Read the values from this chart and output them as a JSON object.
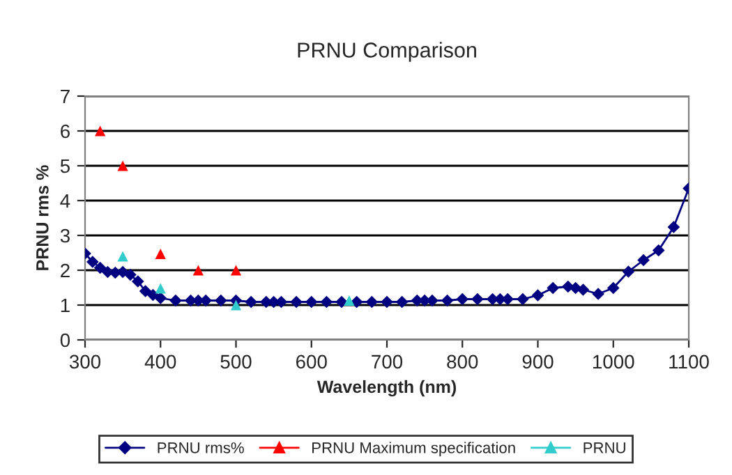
{
  "chart_data": {
    "type": "line",
    "title": "PRNU Comparison",
    "xlabel": "Wavelength (nm)",
    "ylabel": "PRNU rms %",
    "xlim": [
      300,
      1100
    ],
    "xticks": [
      300,
      400,
      500,
      600,
      700,
      800,
      900,
      1000,
      1100
    ],
    "ylim": [
      0,
      7
    ],
    "yticks": [
      0,
      1,
      2,
      3,
      4,
      5,
      6,
      7
    ],
    "grid": "y",
    "legend": "bottom",
    "series": [
      {
        "name": "PRNU rms%",
        "color": "#000080",
        "marker": "diamond",
        "x": [
          300,
          310,
          320,
          330,
          340,
          350,
          360,
          370,
          380,
          390,
          400,
          420,
          440,
          450,
          460,
          480,
          500,
          520,
          540,
          550,
          560,
          580,
          600,
          620,
          640,
          660,
          680,
          700,
          720,
          740,
          750,
          760,
          780,
          800,
          820,
          840,
          850,
          860,
          880,
          900,
          920,
          940,
          950,
          960,
          980,
          1000,
          1020,
          1040,
          1060,
          1080,
          1100
        ],
        "values": [
          2.48,
          2.24,
          2.07,
          1.95,
          1.93,
          1.95,
          1.87,
          1.68,
          1.4,
          1.29,
          1.2,
          1.13,
          1.13,
          1.13,
          1.13,
          1.13,
          1.13,
          1.09,
          1.09,
          1.09,
          1.09,
          1.09,
          1.09,
          1.09,
          1.09,
          1.09,
          1.09,
          1.09,
          1.09,
          1.13,
          1.13,
          1.13,
          1.13,
          1.17,
          1.17,
          1.17,
          1.17,
          1.17,
          1.17,
          1.28,
          1.49,
          1.53,
          1.49,
          1.44,
          1.32,
          1.49,
          1.96,
          2.29,
          2.57,
          3.24,
          4.35
        ]
      },
      {
        "name": "PRNU Maximum specification",
        "color": "#ff0000",
        "type": "scatter",
        "marker": "triangle",
        "x": [
          320,
          350,
          400,
          450,
          500
        ],
        "values": [
          6.0,
          5.0,
          2.47,
          2.0,
          2.0
        ]
      },
      {
        "name": "PRNU",
        "color": "#33cccc",
        "type": "scatter",
        "marker": "triangle",
        "x": [
          350,
          400,
          500,
          650
        ],
        "values": [
          2.4,
          1.48,
          1.0,
          1.13
        ]
      }
    ]
  }
}
